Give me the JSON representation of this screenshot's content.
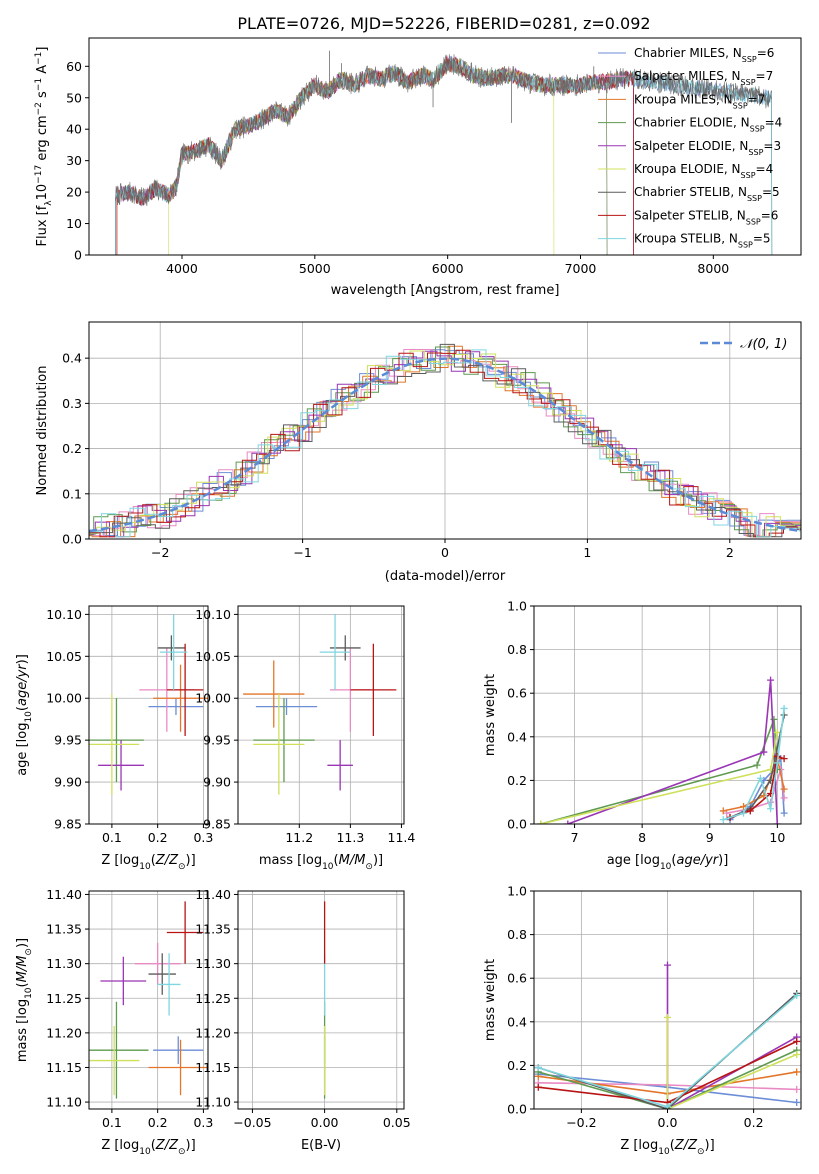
{
  "title": "PLATE=0726, MJD=52226, FIBERID=0281, z=0.092",
  "colors": [
    "#6b8ed6",
    "#e98ac4",
    "#e3762a",
    "#5e9a4f",
    "#9a35b5",
    "#cfe05b",
    "#5c5c5c",
    "#b81414",
    "#7fd6df"
  ],
  "models": [
    {
      "label": "Chabrier MILES, N_{SSP}=6",
      "text": "Chabrier MILES, N",
      "sub": "SSP",
      "tail": "=6"
    },
    {
      "label": "Salpeter MILES, N_{SSP}=7",
      "text": "Salpeter MILES, N",
      "sub": "SSP",
      "tail": "=7"
    },
    {
      "label": "Kroupa MILES, N_{SSP}=7",
      "text": "Kroupa MILES, N",
      "sub": "SSP",
      "tail": "=7"
    },
    {
      "label": "Chabrier ELODIE, N_{SSP}=4",
      "text": "Chabrier ELODIE, N",
      "sub": "SSP",
      "tail": "=4"
    },
    {
      "label": "Salpeter ELODIE, N_{SSP}=3",
      "text": "Salpeter ELODIE, N",
      "sub": "SSP",
      "tail": "=3"
    },
    {
      "label": "Kroupa ELODIE, N_{SSP}=4",
      "text": "Kroupa ELODIE, N",
      "sub": "SSP",
      "tail": "=4"
    },
    {
      "label": "Chabrier STELIB, N_{SSP}=5",
      "text": "Chabrier STELIB, N",
      "sub": "SSP",
      "tail": "=5"
    },
    {
      "label": "Salpeter STELIB, N_{SSP}=6",
      "text": "Salpeter STELIB, N",
      "sub": "SSP",
      "tail": "=6"
    },
    {
      "label": "Kroupa STELIB, N_{SSP}=5",
      "text": "Kroupa STELIB, N",
      "sub": "SSP",
      "tail": "=5"
    }
  ],
  "chart_data": [
    {
      "type": "line",
      "name": "spectrum",
      "xlabel": "wavelength [Angstrom, rest frame]",
      "ylabel": "Flux [f_λ 10^-17 erg cm^-2 s^-1 A^-1]",
      "xlim": [
        3300,
        8660
      ],
      "ylim": [
        0,
        69
      ],
      "xticks": [
        4000,
        5000,
        6000,
        7000,
        8000
      ],
      "yticks": [
        0,
        10,
        20,
        30,
        40,
        50,
        60
      ],
      "grid": false,
      "legend": "top-right",
      "continuum_x": [
        3510,
        3600,
        3700,
        3800,
        3900,
        3960,
        4000,
        4100,
        4200,
        4300,
        4400,
        4500,
        4600,
        4700,
        4800,
        4900,
        5000,
        5100,
        5200,
        5300,
        5400,
        5500,
        5600,
        5700,
        5800,
        5900,
        6000,
        6100,
        6200,
        6300,
        6400,
        6500,
        6600,
        6700,
        6800,
        6900,
        7000,
        7100,
        7200,
        7300,
        7400
      ],
      "continuum_y": [
        19,
        20,
        18,
        21,
        19,
        22,
        32,
        33,
        35,
        30,
        40,
        41,
        43,
        46,
        44,
        50,
        54,
        52,
        56,
        54,
        57,
        56,
        58,
        55,
        57,
        56,
        61,
        60,
        57,
        56,
        57,
        57,
        55,
        54,
        54,
        54,
        54,
        55,
        55,
        56,
        56
      ],
      "noise": 2.2,
      "spikes": [
        {
          "x": 5110,
          "y": 65
        },
        {
          "x": 5890,
          "y": 47
        },
        {
          "x": 6480,
          "y": 42
        },
        {
          "x": 5200,
          "y": 61
        },
        {
          "x": 7100,
          "y": 60
        }
      ],
      "model_ranges": [
        {
          "series": 0,
          "x": [
            3500,
            8440
          ]
        },
        {
          "series": 1,
          "x": [
            3500,
            7200
          ]
        },
        {
          "series": 2,
          "x": [
            3510,
            7400
          ]
        },
        {
          "series": 3,
          "x": [
            3500,
            7200
          ]
        },
        {
          "series": 4,
          "x": [
            3500,
            7400
          ]
        },
        {
          "series": 5,
          "x": [
            3900,
            6800
          ]
        },
        {
          "series": 6,
          "x": [
            3500,
            8440
          ]
        },
        {
          "series": 7,
          "x": [
            3510,
            7400
          ]
        },
        {
          "series": 8,
          "x": [
            3500,
            8440
          ]
        }
      ]
    },
    {
      "type": "histogram",
      "name": "residuals",
      "xlabel": "(data-model)/error",
      "ylabel": "Normed distribution",
      "xlim": [
        -2.5,
        2.5
      ],
      "ylim": [
        0,
        0.48
      ],
      "xticks": [
        -2,
        -1,
        0,
        1,
        2
      ],
      "yticks": [
        0.0,
        0.1,
        0.2,
        0.3,
        0.4
      ],
      "grid": true,
      "bin_width": 0.1,
      "normal_label": "𝒩(0, 1)",
      "normal_color": "#5b8ad6",
      "legend": "top-right"
    },
    {
      "type": "scatter",
      "name": "age-vs-Z",
      "xlabel": "Z [log10(Z/Z⊙)]",
      "ylabel": "age [log10(age/yr)]",
      "xlim": [
        0.05,
        0.31
      ],
      "ylim": [
        9.85,
        10.11
      ],
      "xticks": [
        0.1,
        0.2,
        0.3
      ],
      "yticks": [
        9.85,
        9.9,
        9.95,
        10.0,
        10.05,
        10.1
      ],
      "grid": true,
      "points": [
        {
          "series": 0,
          "x": 0.24,
          "y": 9.99,
          "xerr": 0.06,
          "yerr": 0.01
        },
        {
          "series": 1,
          "x": 0.22,
          "y": 10.01,
          "xerr": 0.06,
          "yerr": 0.05
        },
        {
          "series": 2,
          "x": 0.25,
          "y": 10.0,
          "xerr": 0.06,
          "yerr": 0.04
        },
        {
          "series": 3,
          "x": 0.11,
          "y": 9.95,
          "xerr": 0.06,
          "yerr": 0.05
        },
        {
          "series": 4,
          "x": 0.12,
          "y": 9.92,
          "xerr": 0.05,
          "yerr": 0.03
        },
        {
          "series": 5,
          "x": 0.1,
          "y": 9.945,
          "xerr": 0.06,
          "yerr": 0.06
        },
        {
          "series": 6,
          "x": 0.23,
          "y": 10.06,
          "xerr": 0.03,
          "yerr": 0.015
        },
        {
          "series": 7,
          "x": 0.26,
          "y": 10.01,
          "xerr": 0.04,
          "yerr": 0.055
        },
        {
          "series": 8,
          "x": 0.235,
          "y": 10.055,
          "xerr": 0.03,
          "yerr": 0.045
        }
      ]
    },
    {
      "type": "scatter",
      "name": "age-vs-mass",
      "xlabel": "mass [log10(M/M⊙)]",
      "ylabel": "",
      "xlim": [
        11.08,
        11.405
      ],
      "ylim": [
        9.85,
        10.11
      ],
      "xticks": [
        11.2,
        11.3,
        11.4
      ],
      "yticks": [
        9.85,
        9.9,
        9.95,
        10.0,
        10.05,
        10.1
      ],
      "grid": true,
      "points": [
        {
          "series": 0,
          "x": 11.175,
          "y": 9.99,
          "xerr": 0.06,
          "yerr": 0.01
        },
        {
          "series": 1,
          "x": 11.3,
          "y": 10.01,
          "xerr": 0.04,
          "yerr": 0.05
        },
        {
          "series": 2,
          "x": 11.15,
          "y": 10.005,
          "xerr": 0.06,
          "yerr": 0.04
        },
        {
          "series": 3,
          "x": 11.17,
          "y": 9.95,
          "xerr": 0.06,
          "yerr": 0.05
        },
        {
          "series": 4,
          "x": 11.28,
          "y": 9.92,
          "xerr": 0.025,
          "yerr": 0.03
        },
        {
          "series": 5,
          "x": 11.16,
          "y": 9.945,
          "xerr": 0.05,
          "yerr": 0.06
        },
        {
          "series": 6,
          "x": 11.29,
          "y": 10.06,
          "xerr": 0.03,
          "yerr": 0.015
        },
        {
          "series": 7,
          "x": 11.345,
          "y": 10.01,
          "xerr": 0.045,
          "yerr": 0.055
        },
        {
          "series": 8,
          "x": 11.27,
          "y": 10.055,
          "xerr": 0.03,
          "yerr": 0.045
        }
      ]
    },
    {
      "type": "line",
      "name": "mass-weight-vs-age",
      "xlabel": "age [log10(age/yr)]",
      "ylabel": "mass weight",
      "xlim": [
        6.4,
        10.35
      ],
      "ylim": [
        0,
        1
      ],
      "xticks": [
        7,
        8,
        9,
        10
      ],
      "yticks": [
        0.0,
        0.2,
        0.4,
        0.6,
        0.8,
        1.0
      ],
      "grid": true,
      "series": [
        {
          "series": 0,
          "x": [
            9.3,
            9.6,
            9.8,
            9.95,
            10.05,
            10.1
          ],
          "y": [
            0.02,
            0.08,
            0.2,
            0.25,
            0.3,
            0.05
          ]
        },
        {
          "series": 1,
          "x": [
            9.25,
            9.6,
            9.9,
            10.05,
            10.1
          ],
          "y": [
            0.05,
            0.07,
            0.1,
            0.25,
            0.12
          ]
        },
        {
          "series": 2,
          "x": [
            9.2,
            9.5,
            9.8,
            10.0,
            10.1
          ],
          "y": [
            0.06,
            0.08,
            0.13,
            0.3,
            0.16
          ]
        },
        {
          "series": 3,
          "x": [
            6.5,
            9.7,
            9.95,
            10.0
          ],
          "y": [
            0.0,
            0.27,
            0.48,
            0.25
          ]
        },
        {
          "series": 4,
          "x": [
            6.9,
            9.8,
            9.9,
            10.0
          ],
          "y": [
            0.0,
            0.33,
            0.66,
            0.0
          ]
        },
        {
          "series": 5,
          "x": [
            6.5,
            9.9,
            10.0
          ],
          "y": [
            0.0,
            0.25,
            0.42
          ]
        },
        {
          "series": 6,
          "x": [
            9.3,
            9.6,
            9.9,
            10.1
          ],
          "y": [
            0.03,
            0.07,
            0.2,
            0.5
          ]
        },
        {
          "series": 7,
          "x": [
            9.3,
            9.6,
            9.9,
            10.0,
            10.1
          ],
          "y": [
            0.03,
            0.06,
            0.14,
            0.31,
            0.3
          ]
        },
        {
          "series": 8,
          "x": [
            9.2,
            9.5,
            9.75,
            9.9,
            10.0,
            10.1
          ],
          "y": [
            0.02,
            0.05,
            0.21,
            0.07,
            0.28,
            0.53
          ]
        }
      ]
    },
    {
      "type": "scatter",
      "name": "mass-vs-Z",
      "xlabel": "Z [log10(Z/Z⊙)]",
      "ylabel": "mass [log10(M/M⊙)]",
      "xlim": [
        0.05,
        0.31
      ],
      "ylim": [
        11.09,
        11.405
      ],
      "xticks": [
        0.1,
        0.2,
        0.3
      ],
      "yticks": [
        11.1,
        11.15,
        11.2,
        11.25,
        11.3,
        11.35,
        11.4
      ],
      "grid": true,
      "points": [
        {
          "series": 0,
          "x": 0.245,
          "y": 11.175,
          "xerr": 0.055,
          "yerr": 0.02
        },
        {
          "series": 1,
          "x": 0.2,
          "y": 11.3,
          "xerr": 0.05,
          "yerr": 0.03
        },
        {
          "series": 2,
          "x": 0.25,
          "y": 11.15,
          "xerr": 0.07,
          "yerr": 0.04
        },
        {
          "series": 3,
          "x": 0.11,
          "y": 11.175,
          "xerr": 0.07,
          "yerr": 0.07
        },
        {
          "series": 4,
          "x": 0.125,
          "y": 11.275,
          "xerr": 0.05,
          "yerr": 0.035
        },
        {
          "series": 5,
          "x": 0.105,
          "y": 11.16,
          "xerr": 0.055,
          "yerr": 0.05
        },
        {
          "series": 6,
          "x": 0.21,
          "y": 11.285,
          "xerr": 0.03,
          "yerr": 0.03
        },
        {
          "series": 7,
          "x": 0.26,
          "y": 11.345,
          "xerr": 0.04,
          "yerr": 0.045
        },
        {
          "series": 8,
          "x": 0.225,
          "y": 11.27,
          "xerr": 0.025,
          "yerr": 0.045
        }
      ]
    },
    {
      "type": "scatter",
      "name": "mass-vs-EBV",
      "xlabel": "E(B-V)",
      "ylabel": "",
      "xlim": [
        -0.06,
        0.055
      ],
      "ylim": [
        11.09,
        11.405
      ],
      "xticks": [
        -0.05,
        0.0,
        0.05
      ],
      "yticks": [
        11.1,
        11.15,
        11.2,
        11.25,
        11.3,
        11.35,
        11.4
      ],
      "grid": true,
      "points": [
        {
          "series": 0,
          "x": 0.0,
          "y": 11.175,
          "xerr": 0,
          "yerr": 0.02
        },
        {
          "series": 3,
          "x": 0.0,
          "y": 11.175,
          "xerr": 0,
          "yerr": 0.07
        },
        {
          "series": 5,
          "x": 0.0,
          "y": 11.16,
          "xerr": 0,
          "yerr": 0.05
        },
        {
          "series": 8,
          "x": 0.0,
          "y": 11.27,
          "xerr": 0,
          "yerr": 0.045
        },
        {
          "series": 7,
          "x": 0.0,
          "y": 11.345,
          "xerr": 0,
          "yerr": 0.045
        }
      ]
    },
    {
      "type": "line",
      "name": "mass-weight-vs-Z",
      "xlabel": "Z [log10(Z/Z⊙)]",
      "ylabel": "mass weight",
      "xlim": [
        -0.31,
        0.31
      ],
      "ylim": [
        0,
        1
      ],
      "xticks": [
        -0.2,
        0.0,
        0.2
      ],
      "yticks": [
        0.0,
        0.2,
        0.4,
        0.6,
        0.8,
        1.0
      ],
      "grid": true,
      "series": [
        {
          "series": 0,
          "x": [
            -0.3,
            0.0,
            0.3
          ],
          "y": [
            0.16,
            0.1,
            0.03
          ]
        },
        {
          "series": 1,
          "x": [
            -0.3,
            0.0,
            0.3
          ],
          "y": [
            0.12,
            0.11,
            0.09
          ]
        },
        {
          "series": 2,
          "x": [
            -0.3,
            0.0,
            0.3
          ],
          "y": [
            0.15,
            0.07,
            0.17
          ]
        },
        {
          "series": 3,
          "x": [
            -0.3,
            0.0,
            0.3
          ],
          "y": [
            0.17,
            0.0,
            0.27
          ]
        },
        {
          "series": 4,
          "x": [
            0.0,
            0.0,
            0.3
          ],
          "y": [
            0.66,
            0.0,
            0.33
          ]
        },
        {
          "series": 5,
          "x": [
            0.0,
            0.0,
            0.3
          ],
          "y": [
            0.42,
            0.0,
            0.25
          ]
        },
        {
          "series": 6,
          "x": [
            -0.3,
            0.0,
            0.3
          ],
          "y": [
            0.19,
            0.0,
            0.53
          ]
        },
        {
          "series": 7,
          "x": [
            -0.3,
            0.0,
            0.3
          ],
          "y": [
            0.1,
            0.03,
            0.31
          ]
        },
        {
          "series": 8,
          "x": [
            -0.3,
            0.0,
            0.3
          ],
          "y": [
            0.19,
            0.01,
            0.52
          ]
        }
      ]
    }
  ]
}
